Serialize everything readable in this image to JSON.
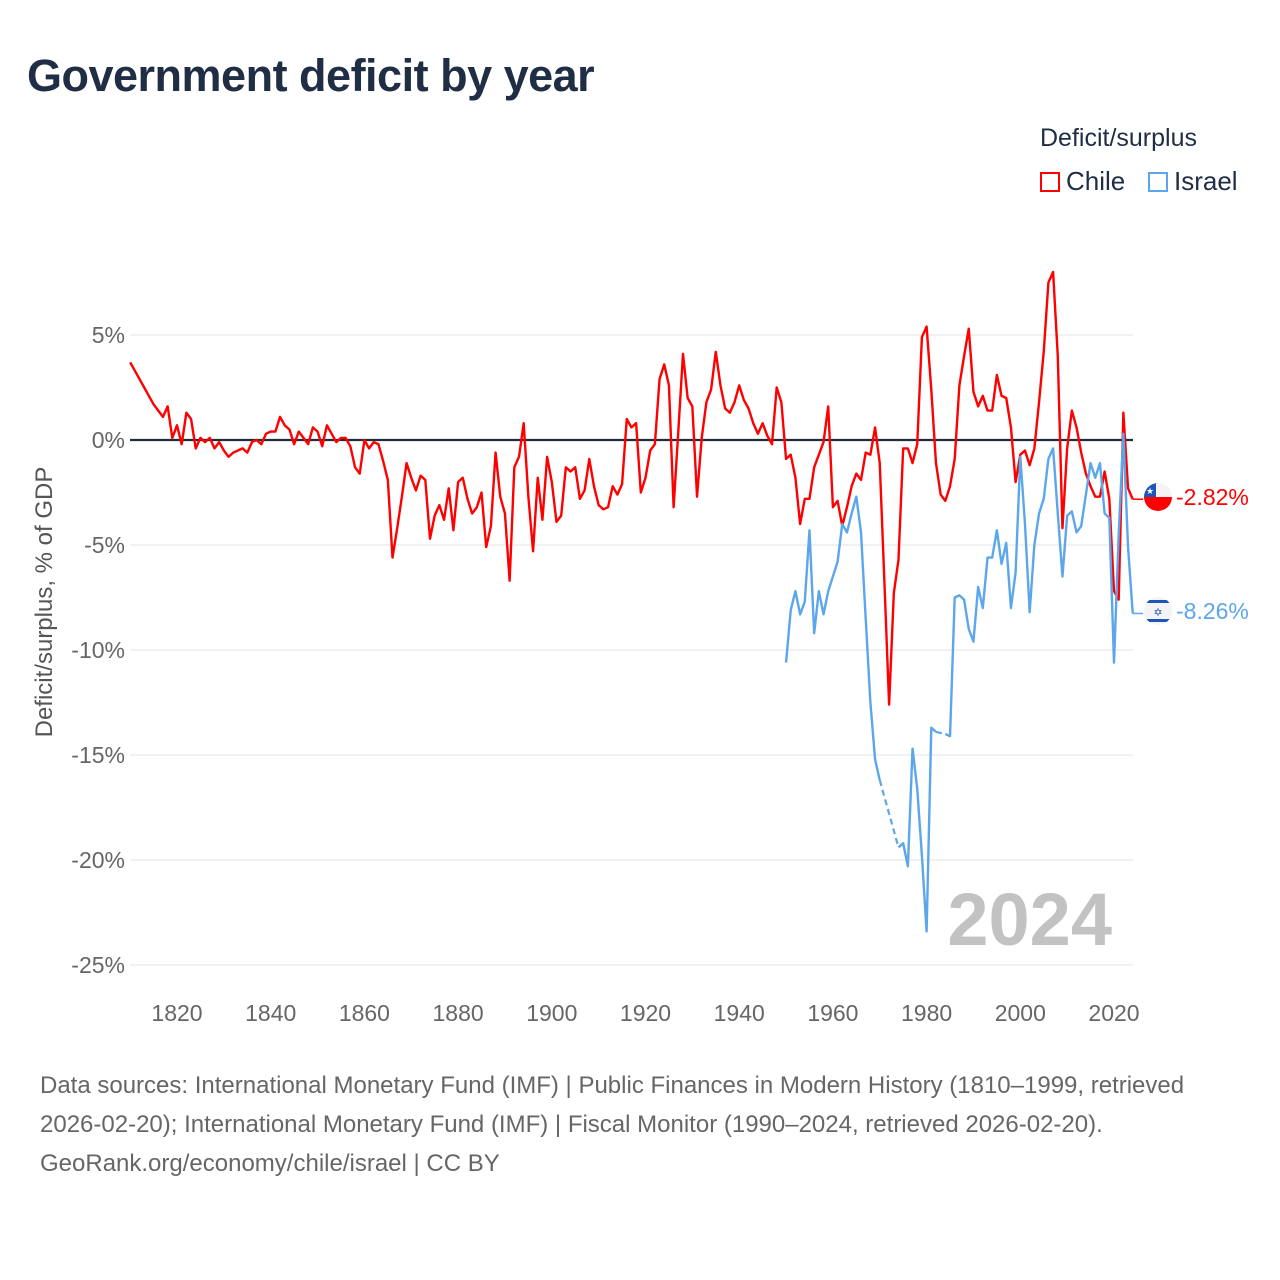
{
  "title": "Government deficit by year",
  "legend": {
    "title": "Deficit/surplus",
    "items": [
      {
        "label": "Chile",
        "color": "#ff0000"
      },
      {
        "label": "Israel",
        "color": "#5ca6ec"
      }
    ]
  },
  "chart_data": {
    "type": "line",
    "title": "Government deficit by year",
    "xlabel": "",
    "ylabel": "Deficit/surplus, % of GDP",
    "xlim": [
      1810,
      2024
    ],
    "ylim": [
      -25,
      5
    ],
    "yticks": [
      5,
      0,
      -5,
      -10,
      -15,
      -20,
      -25
    ],
    "ytick_labels": [
      "5%",
      "0%",
      "-5%",
      "-10%",
      "-15%",
      "-20%",
      "-25%"
    ],
    "xticks": [
      1820,
      1840,
      1860,
      1880,
      1900,
      1920,
      1940,
      1960,
      1980,
      2000,
      2020
    ],
    "xtick_labels": [
      "1820",
      "1840",
      "1860",
      "1880",
      "1900",
      "1920",
      "1940",
      "1960",
      "1980",
      "2000",
      "2020"
    ],
    "grid": true,
    "legend_position": "top-right",
    "year_watermark": "2024",
    "series": [
      {
        "name": "Chile",
        "color": "#ff0000",
        "start_year": 1810,
        "end_label": "-2.82%",
        "values": [
          3.7,
          3.3,
          2.9,
          2.5,
          2.1,
          1.7,
          1.4,
          1.1,
          1.6,
          0.1,
          0.7,
          -0.2,
          1.3,
          1.0,
          -0.4,
          0.1,
          -0.1,
          0.1,
          -0.4,
          -0.1,
          -0.5,
          -0.8,
          -0.6,
          -0.5,
          -0.4,
          -0.6,
          -0.1,
          0.0,
          -0.2,
          0.3,
          0.4,
          0.4,
          1.1,
          0.7,
          0.5,
          -0.2,
          0.4,
          0.1,
          -0.2,
          0.6,
          0.4,
          -0.3,
          0.7,
          0.3,
          -0.1,
          0.1,
          0.1,
          -0.3,
          -1.3,
          -1.6,
          0.0,
          -0.4,
          -0.1,
          -0.2,
          -1.0,
          -1.9,
          -5.6,
          -4.2,
          -2.7,
          -1.1,
          -1.8,
          -2.4,
          -1.7,
          -1.9,
          -4.7,
          -3.6,
          -3.1,
          -3.8,
          -2.3,
          -4.3,
          -2.0,
          -1.8,
          -2.8,
          -3.5,
          -3.2,
          -2.5,
          -5.1,
          -4.1,
          -0.6,
          -2.7,
          -3.5,
          -6.7,
          -1.3,
          -0.8,
          0.8,
          -2.7,
          -5.3,
          -1.8,
          -3.8,
          -0.8,
          -2.0,
          -3.9,
          -3.6,
          -1.3,
          -1.5,
          -1.3,
          -2.8,
          -2.4,
          -0.9,
          -2.2,
          -3.1,
          -3.3,
          -3.2,
          -2.2,
          -2.6,
          -2.1,
          1.0,
          0.6,
          0.8,
          -2.5,
          -1.8,
          -0.5,
          -0.2,
          2.9,
          3.6,
          2.6,
          -3.2,
          0.4,
          4.1,
          2.0,
          1.6,
          -2.7,
          0.1,
          1.8,
          2.4,
          4.2,
          2.6,
          1.5,
          1.3,
          1.8,
          2.6,
          1.9,
          1.5,
          0.8,
          0.3,
          0.8,
          0.2,
          -0.2,
          2.5,
          1.8,
          -0.9,
          -0.7,
          -1.8,
          -4.0,
          -2.8,
          -2.8,
          -1.3,
          -0.7,
          -0.1,
          1.6,
          -3.2,
          -2.9,
          -4.1,
          -3.2,
          -2.2,
          -1.6,
          -1.9,
          -0.6,
          -0.7,
          0.6,
          -1.1,
          -6.8,
          -12.6,
          -7.3,
          -5.7,
          -0.4,
          -0.4,
          -1.1,
          -0.2,
          4.9,
          5.4,
          2.4,
          -1.1,
          -2.6,
          -2.9,
          -2.2,
          -0.9,
          2.6,
          4.0,
          5.3,
          2.3,
          1.6,
          2.1,
          1.4,
          1.4,
          3.1,
          2.1,
          2.0,
          0.6,
          -2.0,
          -0.7,
          -0.5,
          -1.2,
          -0.4,
          1.8,
          4.2,
          7.5,
          8.0,
          4.0,
          -4.2,
          -0.4,
          1.4,
          0.6,
          -0.6,
          -1.6,
          -2.2,
          -2.7,
          -2.7,
          -1.5,
          -2.8,
          -7.2,
          -7.6,
          1.3,
          -2.3,
          -2.82
        ]
      },
      {
        "name": "Israel",
        "color": "#5ca6ec",
        "start_year": 1950,
        "end_label": "-8.26%",
        "values": [
          -10.6,
          -8.1,
          -7.2,
          -8.3,
          -7.7,
          -4.3,
          -9.2,
          -7.2,
          -8.3,
          -7.2,
          -6.5,
          -5.8,
          -4.0,
          -4.4,
          -3.5,
          -2.7,
          -4.4,
          -8.5,
          -12.5,
          -15.2,
          -16.2,
          null,
          null,
          null,
          -19.4,
          -19.2,
          -20.3,
          -14.7,
          -16.6,
          -19.8,
          -23.4,
          -13.7,
          -13.9,
          null,
          -14.0,
          -14.1,
          -7.5,
          -7.4,
          -7.6,
          -9.0,
          -9.6,
          -7.0,
          -8.0,
          -5.6,
          -5.6,
          -4.3,
          -5.9,
          -4.9,
          -8.0,
          -6.3,
          -0.8,
          -4.0,
          -8.2,
          -5.0,
          -3.5,
          -2.8,
          -0.9,
          -0.4,
          -3.5,
          -6.5,
          -3.6,
          -3.4,
          -4.4,
          -4.1,
          -2.6,
          -1.1,
          -1.8,
          -1.1,
          -3.5,
          -3.7,
          -10.6,
          -4.5,
          0.3,
          -5.1,
          -8.26
        ]
      }
    ]
  },
  "footer": {
    "sources": "Data sources: International Monetary Fund (IMF) | Public Finances in Modern History (1810–1999, retrieved 2026-02-20); International Monetary Fund (IMF) | Fiscal Monitor (1990–2024, retrieved 2026-02-20).",
    "credit": "GeoRank.org/economy/chile/israel | CC BY"
  }
}
